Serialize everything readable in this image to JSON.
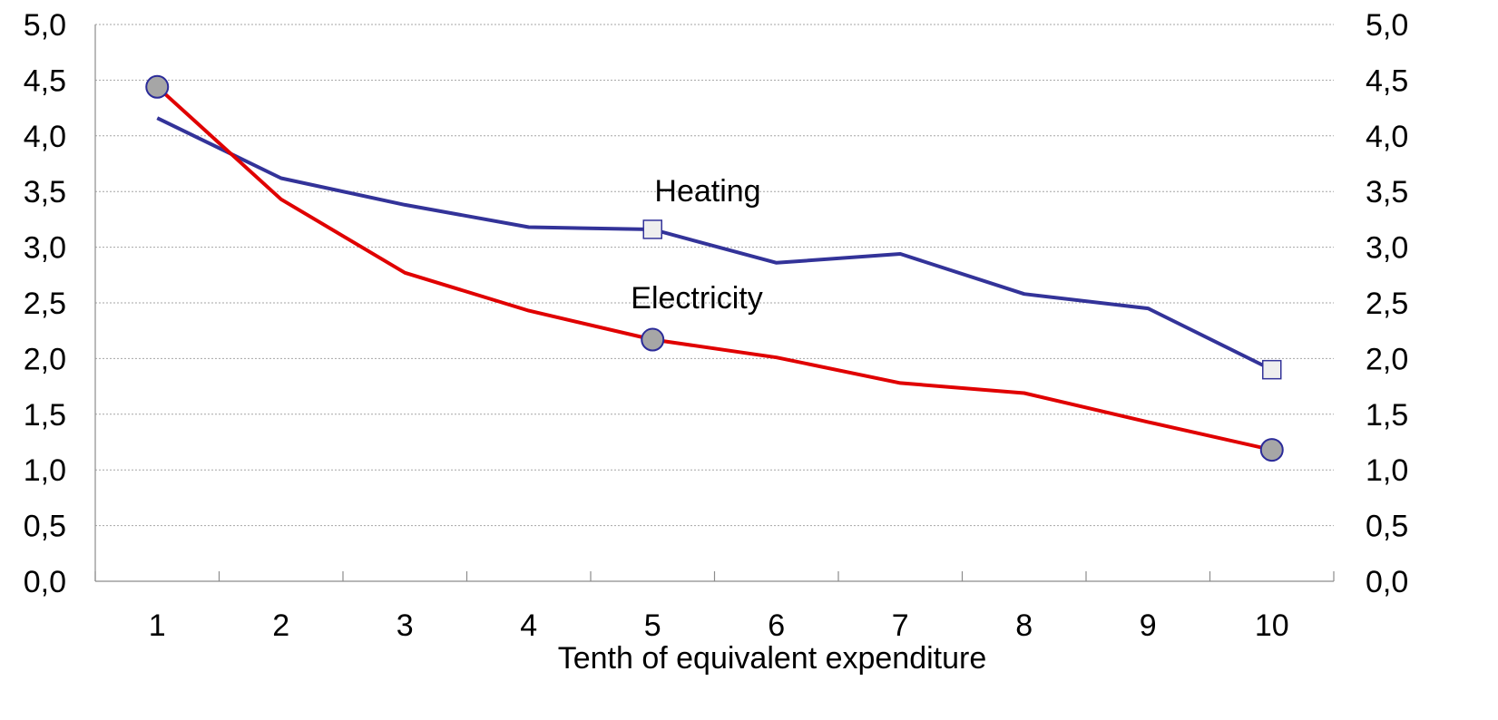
{
  "chart_data": {
    "type": "line",
    "categories": [
      "1",
      "2",
      "3",
      "4",
      "5",
      "6",
      "7",
      "8",
      "9",
      "10"
    ],
    "xlabel": "Tenth of equivalent expenditure",
    "ylim": [
      0,
      5
    ],
    "yticks": [
      "0,0",
      "0,5",
      "1,0",
      "1,5",
      "2,0",
      "2,5",
      "3,0",
      "3,5",
      "4,0",
      "4,5",
      "5,0"
    ],
    "grid": true,
    "series": [
      {
        "name": "Heating",
        "color": "#333399",
        "marker": "square",
        "marker_fill": "#eeeeee",
        "markers_at": [
          5,
          10
        ],
        "values": [
          4.16,
          3.62,
          3.38,
          3.18,
          3.16,
          2.86,
          2.94,
          2.58,
          2.45,
          1.9
        ]
      },
      {
        "name": "Electricity",
        "color": "#e00000",
        "marker": "circle",
        "marker_fill": "#a6a6a6",
        "marker_stroke": "#2b2b99",
        "markers_at": [
          1,
          5,
          10
        ],
        "values": [
          4.44,
          3.43,
          2.77,
          2.43,
          2.17,
          2.01,
          1.78,
          1.69,
          1.43,
          1.18
        ]
      }
    ]
  }
}
